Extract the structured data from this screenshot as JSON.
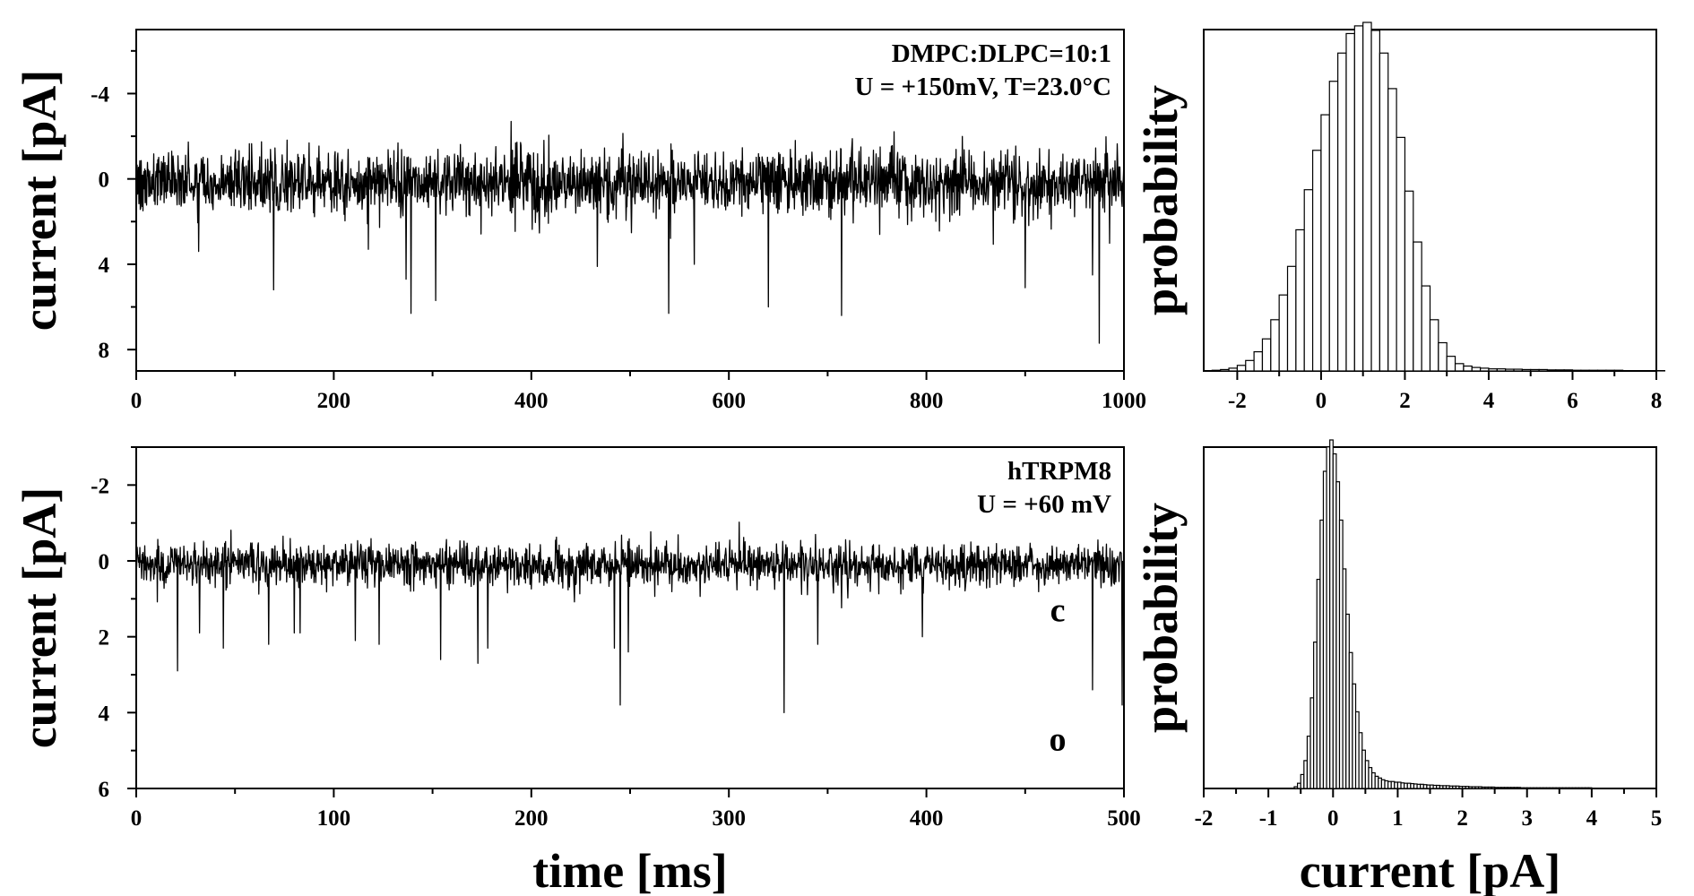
{
  "chart_data": [
    {
      "id": "trace-top",
      "type": "line",
      "xlabel": "",
      "ylabel": "current [pA]",
      "xlim": [
        0,
        1000
      ],
      "ylim": [
        9,
        -7
      ],
      "y_inverted": true,
      "xticks": [
        0,
        200,
        400,
        600,
        800,
        1000
      ],
      "xtick_labels": [
        "0",
        "200",
        "400",
        "600",
        "800",
        "1000"
      ],
      "yticks": [
        -4,
        0,
        4,
        8
      ],
      "ytick_labels": [
        "-4",
        "0",
        "4",
        "8"
      ],
      "annotations": [
        "DMPC:DLPC=10:1",
        "U = +150mV, T=23.0°C"
      ],
      "baseline": 0.2,
      "noise_sd": 0.75,
      "seed": 12345,
      "spikes": [
        {
          "t": 63,
          "v": 3.4
        },
        {
          "t": 139,
          "v": 5.2
        },
        {
          "t": 235,
          "v": 3.3
        },
        {
          "t": 273,
          "v": 4.7
        },
        {
          "t": 278,
          "v": 6.3
        },
        {
          "t": 303,
          "v": 5.7
        },
        {
          "t": 467,
          "v": 4.1
        },
        {
          "t": 539,
          "v": 6.3
        },
        {
          "t": 565,
          "v": 4.0
        },
        {
          "t": 640,
          "v": 6.0
        },
        {
          "t": 714,
          "v": 6.4
        },
        {
          "t": 900,
          "v": 5.1
        },
        {
          "t": 968,
          "v": 4.5
        },
        {
          "t": 975,
          "v": 7.7
        }
      ]
    },
    {
      "id": "hist-top",
      "type": "bar",
      "xlabel": "",
      "ylabel": "probability",
      "xlim": [
        -2.8,
        8
      ],
      "xticks": [
        -2,
        0,
        2,
        4,
        6,
        8
      ],
      "xtick_labels": [
        "-2",
        "0",
        "2",
        "4",
        "6",
        "8"
      ],
      "bins": {
        "start": -2.6,
        "width": 0.2
      },
      "values": [
        0.002,
        0.004,
        0.008,
        0.016,
        0.03,
        0.055,
        0.092,
        0.147,
        0.218,
        0.3,
        0.405,
        0.52,
        0.633,
        0.735,
        0.831,
        0.912,
        0.968,
        0.99,
        1.0,
        0.977,
        0.912,
        0.81,
        0.67,
        0.516,
        0.37,
        0.244,
        0.147,
        0.081,
        0.042,
        0.021,
        0.014,
        0.01,
        0.008,
        0.006,
        0.006,
        0.005,
        0.005,
        0.004,
        0.004,
        0.004,
        0.003,
        0.003,
        0.003,
        0.002,
        0.002,
        0.002,
        0.002,
        0.002,
        0.002,
        0.001,
        0.001,
        0.001,
        0.001,
        0.001
      ]
    },
    {
      "id": "trace-bottom",
      "type": "line",
      "xlabel": "time [ms]",
      "ylabel": "current [pA]",
      "xlim": [
        0,
        500
      ],
      "ylim": [
        6,
        -3
      ],
      "y_inverted": true,
      "xticks": [
        0,
        100,
        200,
        300,
        400,
        500
      ],
      "xtick_labels": [
        "0",
        "100",
        "200",
        "300",
        "400",
        "500"
      ],
      "yticks": [
        -2,
        0,
        2,
        4,
        6
      ],
      "ytick_labels": [
        "-2",
        "0",
        "2",
        "4",
        "6"
      ],
      "annotations": [
        "hTRPM8",
        "U = +60 mV"
      ],
      "state_labels": [
        {
          "text": "c",
          "y": 1.6
        },
        {
          "text": "o",
          "y": 5.0
        }
      ],
      "baseline": 0.1,
      "noise_sd": 0.28,
      "seed": 777,
      "spikes": [
        {
          "t": 21,
          "v": 2.9
        },
        {
          "t": 32,
          "v": 1.9
        },
        {
          "t": 44,
          "v": 2.3
        },
        {
          "t": 67,
          "v": 2.2
        },
        {
          "t": 80,
          "v": 1.9
        },
        {
          "t": 83,
          "v": 1.9
        },
        {
          "t": 111,
          "v": 2.1
        },
        {
          "t": 123,
          "v": 2.2
        },
        {
          "t": 154,
          "v": 2.6
        },
        {
          "t": 173,
          "v": 2.7
        },
        {
          "t": 178,
          "v": 2.3
        },
        {
          "t": 242,
          "v": 2.3
        },
        {
          "t": 245,
          "v": 3.8
        },
        {
          "t": 249,
          "v": 2.4
        },
        {
          "t": 328,
          "v": 4.0
        },
        {
          "t": 345,
          "v": 2.2
        },
        {
          "t": 398,
          "v": 2.0
        },
        {
          "t": 484,
          "v": 3.4
        },
        {
          "t": 499,
          "v": 3.8
        }
      ]
    },
    {
      "id": "hist-bottom",
      "type": "bar",
      "xlabel": "current [pA]",
      "ylabel": "probability",
      "xlim": [
        -2,
        5
      ],
      "xticks": [
        -2,
        -1,
        0,
        1,
        2,
        3,
        4,
        5
      ],
      "xtick_labels": [
        "-2",
        "-1",
        "0",
        "1",
        "2",
        "3",
        "4",
        "5"
      ],
      "bins": {
        "start": -0.6,
        "width": 0.05
      },
      "values": [
        0.005,
        0.015,
        0.04,
        0.08,
        0.15,
        0.26,
        0.42,
        0.6,
        0.77,
        0.91,
        0.98,
        1.0,
        0.96,
        0.88,
        0.77,
        0.63,
        0.5,
        0.39,
        0.3,
        0.22,
        0.16,
        0.11,
        0.08,
        0.06,
        0.045,
        0.035,
        0.03,
        0.025,
        0.022,
        0.02,
        0.02,
        0.018,
        0.018,
        0.016,
        0.015,
        0.015,
        0.014,
        0.013,
        0.012,
        0.012,
        0.011,
        0.01,
        0.01,
        0.009,
        0.009,
        0.008,
        0.008,
        0.008,
        0.007,
        0.007,
        0.007,
        0.006,
        0.006,
        0.006,
        0.005,
        0.005,
        0.005,
        0.005,
        0.004,
        0.004,
        0.004,
        0.004,
        0.003,
        0.003,
        0.003,
        0.003,
        0.003,
        0.003,
        0.003,
        0.003,
        0.002,
        0.002,
        0.002,
        0.002,
        0.002,
        0.002,
        0.002,
        0.002,
        0.002,
        0.002,
        0.002,
        0.002,
        0.002,
        0.002,
        0.002,
        0.002,
        0.002,
        0.002,
        0.002,
        0.002,
        0.002,
        0.002,
        0.001
      ]
    }
  ]
}
